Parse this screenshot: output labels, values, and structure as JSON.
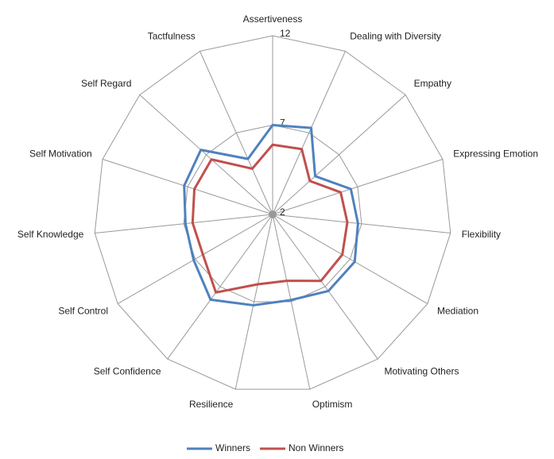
{
  "chart_data": {
    "type": "radar",
    "categories": [
      "Assertiveness",
      "Dealing with Diversity",
      "Empathy",
      "Expressing Emotion",
      "Flexibility",
      "Mediation",
      "Motivating Others",
      "Optimism",
      "Resilience",
      "Self Confidence",
      "Self Control",
      "Self Knowledge",
      "Self Motivation",
      "Self Regard",
      "Tactfulness"
    ],
    "series": [
      {
        "name": "Winners",
        "color": "#4f81bd",
        "values": [
          7.0,
          7.3,
          5.2,
          6.6,
          6.8,
          7.3,
          7.3,
          6.9,
          7.2,
          7.9,
          7.1,
          6.9,
          7.2,
          7.4,
          5.4
        ]
      },
      {
        "name": "Non Winners",
        "color": "#c0504d",
        "values": [
          5.9,
          6.0,
          4.8,
          6.0,
          6.2,
          6.5,
          6.6,
          5.8,
          6.0,
          7.4,
          6.5,
          6.5,
          6.6,
          6.6,
          4.8
        ]
      }
    ],
    "ylim": [
      2,
      12
    ],
    "yticks": [
      2,
      7,
      12
    ],
    "grid": true,
    "legend": "bottom"
  }
}
